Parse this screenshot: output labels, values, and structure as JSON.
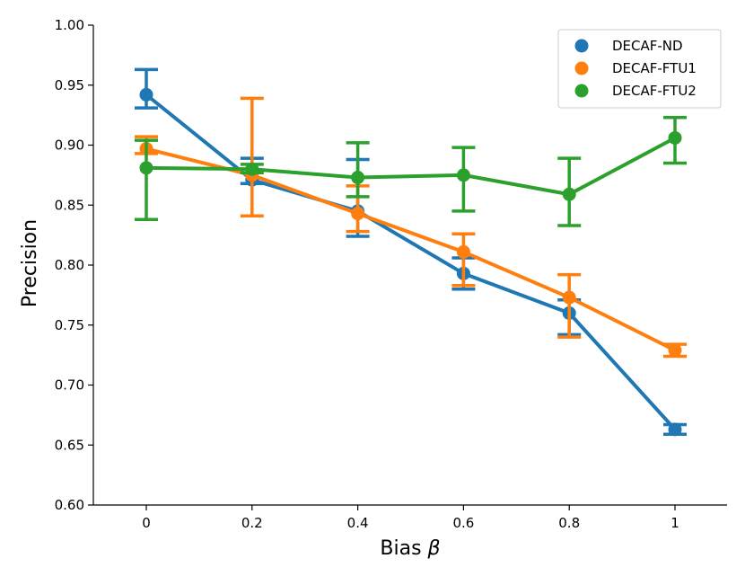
{
  "chart_data": {
    "type": "line",
    "xlabel": "Bias",
    "xlabel_symbol": "β",
    "ylabel": "Precision",
    "ylim": [
      0.6,
      1.0
    ],
    "yticks": [
      "0.60",
      "0.65",
      "0.70",
      "0.75",
      "0.80",
      "0.85",
      "0.90",
      "0.95",
      "1.00"
    ],
    "categories": [
      "0",
      "0.2",
      "0.4",
      "0.6",
      "0.8",
      "1"
    ],
    "legend_position": "top-right",
    "grid": false,
    "series": [
      {
        "name": "DECAF-ND",
        "color": "#1f77b4",
        "values": [
          0.942,
          0.871,
          0.845,
          0.793,
          0.76,
          0.663
        ],
        "err_low": [
          0.931,
          0.868,
          0.824,
          0.78,
          0.742,
          0.659
        ],
        "err_high": [
          0.963,
          0.889,
          0.888,
          0.806,
          0.771,
          0.667
        ]
      },
      {
        "name": "DECAF-FTU1",
        "color": "#ff7f0e",
        "values": [
          0.897,
          0.875,
          0.843,
          0.811,
          0.773,
          0.729
        ],
        "err_low": [
          0.893,
          0.841,
          0.828,
          0.783,
          0.74,
          0.724
        ],
        "err_high": [
          0.907,
          0.939,
          0.866,
          0.826,
          0.792,
          0.734
        ]
      },
      {
        "name": "DECAF-FTU2",
        "color": "#2ca02c",
        "values": [
          0.881,
          0.88,
          0.873,
          0.875,
          0.859,
          0.906
        ],
        "err_low": [
          0.838,
          0.877,
          0.857,
          0.845,
          0.833,
          0.885
        ],
        "err_high": [
          0.904,
          0.884,
          0.902,
          0.898,
          0.889,
          0.923
        ]
      }
    ]
  }
}
